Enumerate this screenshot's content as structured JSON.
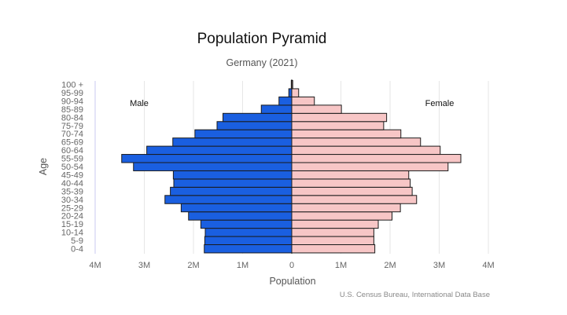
{
  "chart_data": {
    "type": "bar",
    "orientation": "horizontal-population-pyramid",
    "title": "Population Pyramid",
    "subtitle": "Germany (2021)",
    "xlabel": "Population",
    "ylabel": "Age",
    "source": "U.S. Census Bureau, International Data Base",
    "left_label": "Male",
    "right_label": "Female",
    "categories": [
      "0-4",
      "5-9",
      "10-14",
      "15-19",
      "20-24",
      "25-29",
      "30-34",
      "35-39",
      "40-44",
      "45-49",
      "50-54",
      "55-59",
      "60-64",
      "65-69",
      "70-74",
      "75-79",
      "80-84",
      "85-89",
      "90-94",
      "95-99",
      "100 +"
    ],
    "x_ticks": [
      {
        "value": -4000000,
        "label": "4M"
      },
      {
        "value": -3000000,
        "label": "3M"
      },
      {
        "value": -2000000,
        "label": "2M"
      },
      {
        "value": -1000000,
        "label": "1M"
      },
      {
        "value": 0,
        "label": "0"
      },
      {
        "value": 1000000,
        "label": "1M"
      },
      {
        "value": 2000000,
        "label": "2M"
      },
      {
        "value": 3000000,
        "label": "3M"
      },
      {
        "value": 4000000,
        "label": "4M"
      }
    ],
    "xlim": [
      -4000000,
      4000000
    ],
    "grid": true,
    "series": [
      {
        "name": "Male",
        "color": "#1a5fe0",
        "values": [
          1780000,
          1770000,
          1760000,
          1850000,
          2100000,
          2250000,
          2580000,
          2470000,
          2400000,
          2410000,
          3220000,
          3460000,
          2950000,
          2420000,
          1970000,
          1520000,
          1400000,
          620000,
          260000,
          60000,
          10000
        ]
      },
      {
        "name": "Female",
        "color": "#f7c6c6",
        "values": [
          1690000,
          1670000,
          1670000,
          1760000,
          2040000,
          2210000,
          2540000,
          2450000,
          2410000,
          2380000,
          3180000,
          3440000,
          3020000,
          2620000,
          2220000,
          1870000,
          1930000,
          1010000,
          460000,
          140000,
          20000
        ]
      }
    ]
  }
}
